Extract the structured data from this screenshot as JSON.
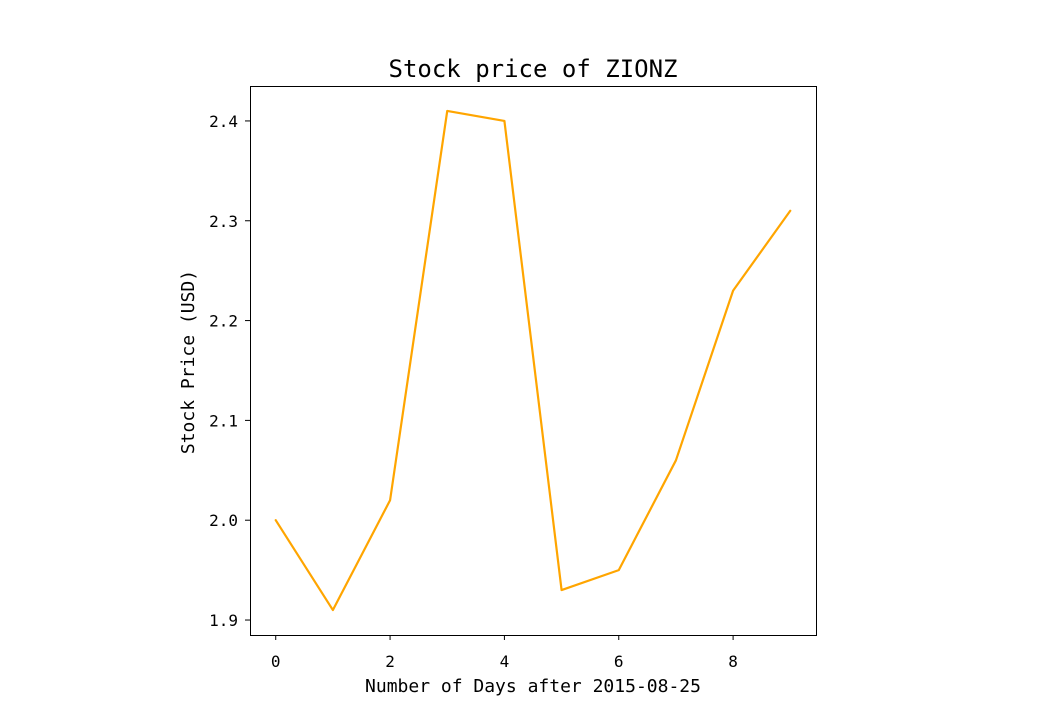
{
  "chart_data": {
    "type": "line",
    "title": "Stock price of ZIONZ",
    "xlabel": "Number of Days after 2015-08-25",
    "ylabel": "Stock Price (USD)",
    "x": [
      0,
      1,
      2,
      3,
      4,
      5,
      6,
      7,
      8,
      9
    ],
    "series": [
      {
        "values": [
          2.0,
          1.91,
          2.02,
          2.41,
          2.4,
          1.93,
          1.95,
          2.06,
          2.23,
          2.31
        ],
        "color": "#ffa500"
      }
    ],
    "xlim": [
      -0.45,
      9.45
    ],
    "ylim": [
      1.885,
      2.435
    ],
    "xticks": [
      0,
      2,
      4,
      6,
      8
    ],
    "xtick_labels": [
      "0",
      "2",
      "4",
      "6",
      "8"
    ],
    "yticks": [
      1.9,
      2.0,
      2.1,
      2.2,
      2.3,
      2.4
    ],
    "ytick_labels": [
      "1.9",
      "2.0",
      "2.1",
      "2.2",
      "2.3",
      "2.4"
    ],
    "grid": false,
    "legend": false
  }
}
